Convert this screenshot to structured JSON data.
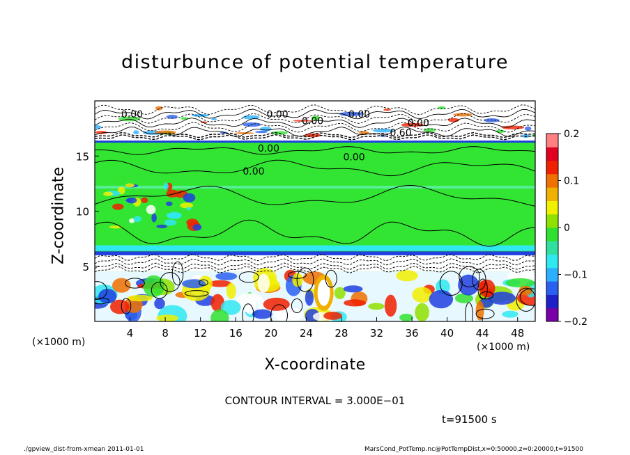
{
  "chart_data": {
    "type": "heatmap",
    "title": "disturbunce of potential temperature",
    "xlabel": "X-coordinate",
    "ylabel": "Z-coordinate",
    "x_unit": "(×1000 m)",
    "xlim": [
      0,
      50
    ],
    "ylim": [
      0,
      20
    ],
    "x_ticks": [
      4,
      8,
      12,
      16,
      20,
      24,
      28,
      32,
      36,
      40,
      44,
      48
    ],
    "y_ticks": [
      5,
      10,
      15
    ],
    "colorbar": {
      "range": [
        -0.2,
        0.2
      ],
      "ticks": [
        "0.2",
        "0.1",
        "0",
        "−0.1",
        "−0.2"
      ],
      "tick_values": [
        0.2,
        0.1,
        0,
        -0.1,
        -0.2
      ],
      "colors": [
        "#7a00a8",
        "#2020c8",
        "#2a60f0",
        "#2ab0ff",
        "#30e8f0",
        "#30e0a0",
        "#30e030",
        "#90e000",
        "#f0f000",
        "#f0b000",
        "#f07000",
        "#f02000",
        "#e00020",
        "#ff8080"
      ]
    },
    "contour_labels": [
      "0.00",
      "0.00",
      "0.00",
      "0.00",
      "0.60",
      "0.00",
      "0.00",
      "0.00",
      "0.00"
    ],
    "contour_interval": "CONTOUR INTERVAL = 3.000E−01",
    "time": "t=91500  s"
  },
  "footer": {
    "left": "./gpview_dist-from-xmean   2011-01-01",
    "right": "MarsCond_PotTemp.nc@PotTempDist,x=0:50000,z=0:20000,t=91500"
  },
  "colors": {
    "green": "#33e533",
    "white": "#ffffff",
    "blue": "#2040e0",
    "cyan": "#30e8f0"
  }
}
